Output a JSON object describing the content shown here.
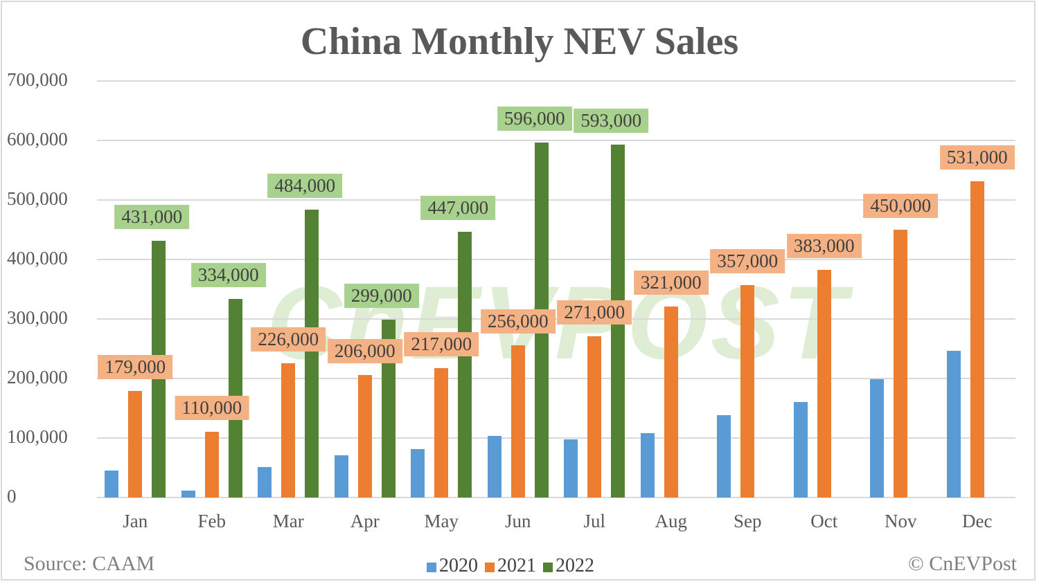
{
  "chart_data": {
    "type": "bar",
    "title": "China Monthly NEV Sales",
    "xlabel": "",
    "ylabel": "",
    "ylim": [
      0,
      700000
    ],
    "yticks": [
      "0",
      "100,000",
      "200,000",
      "300,000",
      "400,000",
      "500,000",
      "600,000",
      "700,000"
    ],
    "grid": true,
    "legend_position": "bottom",
    "categories": [
      "Jan",
      "Feb",
      "Mar",
      "Apr",
      "May",
      "Jun",
      "Jul",
      "Aug",
      "Sep",
      "Oct",
      "Nov",
      "Dec"
    ],
    "series": [
      {
        "name": "2020",
        "color": "#5b9bd5",
        "values": [
          45000,
          12000,
          51000,
          71000,
          81000,
          103000,
          98000,
          108000,
          138000,
          160000,
          199000,
          247000
        ]
      },
      {
        "name": "2021",
        "color": "#ed7d31",
        "values": [
          179000,
          110000,
          226000,
          206000,
          217000,
          256000,
          271000,
          321000,
          357000,
          383000,
          450000,
          531000
        ]
      },
      {
        "name": "2022",
        "color": "#548235",
        "values": [
          431000,
          334000,
          484000,
          299000,
          447000,
          596000,
          593000
        ]
      }
    ],
    "data_labels": {
      "2021": [
        "179,000",
        "110,000",
        "226,000",
        "206,000",
        "217,000",
        "256,000",
        "271,000",
        "321,000",
        "357,000",
        "383,000",
        "450,000",
        "531,000"
      ],
      "2022": [
        "431,000",
        "334,000",
        "484,000",
        "299,000",
        "447,000",
        "596,000",
        "593,000"
      ]
    }
  },
  "footer": {
    "source": "Source: CAAM",
    "copyright": "© CnEVPost"
  },
  "legend": [
    "2020",
    "2021",
    "2022"
  ],
  "watermark": "CnEVPOST"
}
